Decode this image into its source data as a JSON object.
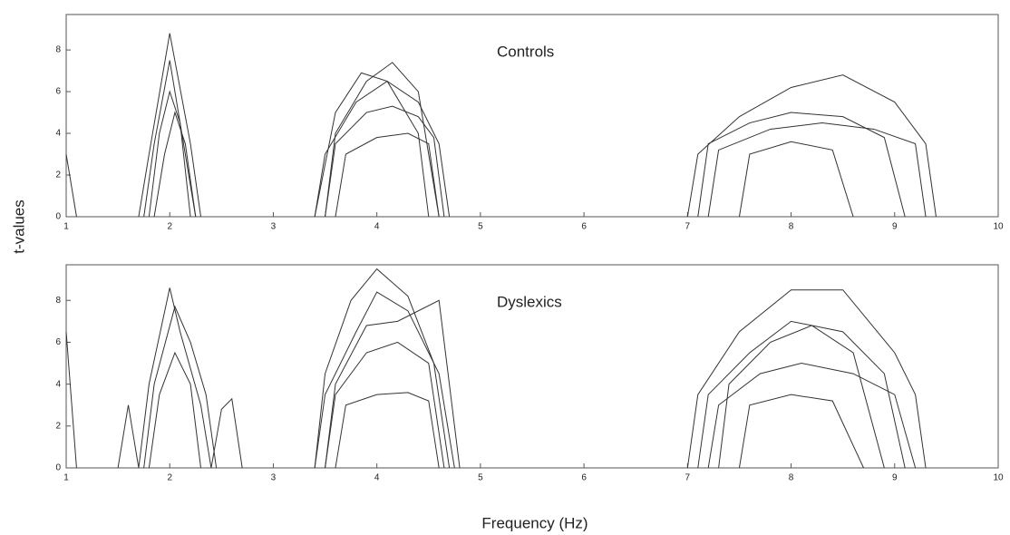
{
  "ylabel": "t-values",
  "xlabel": "Frequency (Hz)",
  "chart_data": [
    {
      "type": "line",
      "annotation": "Controls",
      "xlim": [
        1,
        10
      ],
      "ylim": [
        0,
        9.7
      ],
      "xticks": [
        1,
        2,
        3,
        4,
        5,
        6,
        7,
        8,
        9,
        10
      ],
      "yticks": [
        0,
        2,
        4,
        6,
        8
      ],
      "series": [
        {
          "color": "#333333",
          "x": [
            1,
            1.1
          ],
          "values": [
            3,
            0
          ]
        },
        {
          "color": "#333333",
          "x": [
            1.7,
            1.8,
            2.0,
            2.2,
            2.3
          ],
          "values": [
            0,
            3,
            8.8,
            3.5,
            0
          ]
        },
        {
          "color": "#333333",
          "x": [
            1.75,
            1.85,
            2.0,
            2.15,
            2.25
          ],
          "values": [
            0,
            3.5,
            7.5,
            3,
            0
          ]
        },
        {
          "color": "#333333",
          "x": [
            1.8,
            1.9,
            2.0,
            2.1,
            2.2
          ],
          "values": [
            0,
            4,
            6,
            4.5,
            0
          ]
        },
        {
          "color": "#333333",
          "x": [
            1.85,
            1.95,
            2.05,
            2.15,
            2.25
          ],
          "values": [
            0,
            3,
            5,
            3.5,
            0
          ]
        },
        {
          "color": "#333333",
          "x": [
            3.4,
            3.5,
            3.8,
            4.1,
            4.4,
            4.6,
            4.7
          ],
          "values": [
            0,
            3,
            5.5,
            6.5,
            5.5,
            3.5,
            0
          ]
        },
        {
          "color": "#333333",
          "x": [
            3.4,
            3.6,
            3.85,
            4.1,
            4.4,
            4.5
          ],
          "values": [
            0,
            5,
            6.9,
            6.5,
            4,
            0
          ]
        },
        {
          "color": "#333333",
          "x": [
            3.5,
            3.6,
            3.9,
            4.15,
            4.4,
            4.55,
            4.65
          ],
          "values": [
            0,
            3.5,
            5,
            5.3,
            4.8,
            3.8,
            0
          ]
        },
        {
          "color": "#333333",
          "x": [
            3.6,
            3.7,
            4.0,
            4.3,
            4.5,
            4.6
          ],
          "values": [
            0,
            3,
            3.8,
            4,
            3.5,
            0
          ]
        },
        {
          "color": "#333333",
          "x": [
            3.5,
            3.6,
            3.9,
            4.15,
            4.4,
            4.6
          ],
          "values": [
            0,
            4,
            6.5,
            7.4,
            6,
            0
          ]
        },
        {
          "color": "#333333",
          "x": [
            7.0,
            7.1,
            7.5,
            8.0,
            8.5,
            9.0,
            9.3,
            9.4
          ],
          "values": [
            0,
            3,
            4.8,
            6.2,
            6.8,
            5.5,
            3.5,
            0
          ]
        },
        {
          "color": "#333333",
          "x": [
            7.1,
            7.2,
            7.6,
            8.0,
            8.5,
            8.9,
            9.1
          ],
          "values": [
            0,
            3.5,
            4.5,
            5,
            4.8,
            3.8,
            0
          ]
        },
        {
          "color": "#333333",
          "x": [
            7.2,
            7.3,
            7.8,
            8.3,
            8.8,
            9.2,
            9.3
          ],
          "values": [
            0,
            3.2,
            4.2,
            4.5,
            4.2,
            3.5,
            0
          ]
        },
        {
          "color": "#333333",
          "x": [
            7.5,
            7.6,
            8.0,
            8.4,
            8.6
          ],
          "values": [
            0,
            3,
            3.6,
            3.2,
            0
          ]
        }
      ]
    },
    {
      "type": "line",
      "annotation": "Dyslexics",
      "xlim": [
        1,
        10
      ],
      "ylim": [
        0,
        9.7
      ],
      "xticks": [
        1,
        2,
        3,
        4,
        5,
        6,
        7,
        8,
        9,
        10
      ],
      "yticks": [
        0,
        2,
        4,
        6,
        8
      ],
      "series": [
        {
          "color": "#333333",
          "x": [
            1,
            1.1
          ],
          "values": [
            6.5,
            0
          ]
        },
        {
          "color": "#333333",
          "x": [
            1.5,
            1.6,
            1.7
          ],
          "values": [
            0,
            3,
            0
          ]
        },
        {
          "color": "#333333",
          "x": [
            1.7,
            1.8,
            2.0,
            2.1,
            2.3,
            2.4
          ],
          "values": [
            0,
            4,
            8.6,
            6.5,
            3,
            0
          ]
        },
        {
          "color": "#333333",
          "x": [
            1.75,
            1.85,
            2.05,
            2.2,
            2.35,
            2.45
          ],
          "values": [
            0,
            4,
            7.7,
            6,
            3.5,
            0
          ]
        },
        {
          "color": "#333333",
          "x": [
            1.8,
            1.9,
            2.05,
            2.2,
            2.3
          ],
          "values": [
            0,
            3.5,
            5.5,
            4,
            0
          ]
        },
        {
          "color": "#333333",
          "x": [
            2.4,
            2.5,
            2.6,
            2.7
          ],
          "values": [
            0,
            2.8,
            3.3,
            0
          ]
        },
        {
          "color": "#333333",
          "x": [
            3.4,
            3.5,
            3.75,
            4.0,
            4.3,
            4.55,
            4.7
          ],
          "values": [
            0,
            4.5,
            8,
            9.5,
            8.2,
            5,
            0
          ]
        },
        {
          "color": "#333333",
          "x": [
            3.4,
            3.5,
            3.8,
            4.0,
            4.3,
            4.6,
            4.75
          ],
          "values": [
            0,
            3.5,
            6.5,
            8.4,
            7.5,
            4.5,
            0
          ]
        },
        {
          "color": "#333333",
          "x": [
            3.5,
            3.6,
            3.9,
            4.2,
            4.5,
            4.65
          ],
          "values": [
            0,
            3.5,
            5.5,
            6,
            5,
            0
          ]
        },
        {
          "color": "#333333",
          "x": [
            3.6,
            3.7,
            4.0,
            4.3,
            4.5,
            4.6
          ],
          "values": [
            0,
            3,
            3.5,
            3.6,
            3.2,
            0
          ]
        },
        {
          "color": "#333333",
          "x": [
            3.5,
            3.6,
            3.9,
            4.2,
            4.6,
            4.8
          ],
          "values": [
            0,
            4,
            6.8,
            7,
            8,
            0
          ]
        },
        {
          "color": "#333333",
          "x": [
            7.0,
            7.1,
            7.5,
            8.0,
            8.5,
            9.0,
            9.2,
            9.3
          ],
          "values": [
            0,
            3.5,
            6.5,
            8.5,
            8.5,
            5.5,
            3.5,
            0
          ]
        },
        {
          "color": "#333333",
          "x": [
            7.1,
            7.2,
            7.6,
            8.0,
            8.5,
            8.9,
            9.1
          ],
          "values": [
            0,
            3.5,
            5.5,
            7,
            6.5,
            4.5,
            0
          ]
        },
        {
          "color": "#333333",
          "x": [
            7.2,
            7.3,
            7.7,
            8.1,
            8.6,
            9.0,
            9.2
          ],
          "values": [
            0,
            3,
            4.5,
            5,
            4.5,
            3.5,
            0
          ]
        },
        {
          "color": "#333333",
          "x": [
            7.5,
            7.6,
            8.0,
            8.4,
            8.7
          ],
          "values": [
            0,
            3,
            3.5,
            3.2,
            0
          ]
        },
        {
          "color": "#333333",
          "x": [
            7.3,
            7.4,
            7.8,
            8.2,
            8.6,
            8.9
          ],
          "values": [
            0,
            4,
            6,
            6.8,
            5.5,
            0
          ]
        }
      ]
    }
  ]
}
